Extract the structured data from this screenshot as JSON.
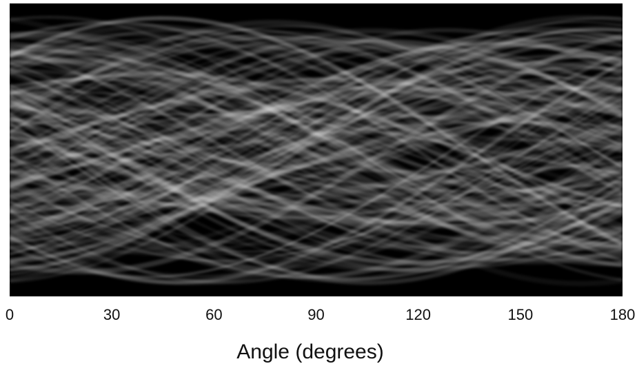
{
  "chart_data": {
    "type": "image",
    "x_label": "Angle (degrees)",
    "xlim": [
      0,
      180
    ],
    "xticks": [
      0,
      30,
      60,
      90,
      120,
      150,
      180
    ]
  }
}
